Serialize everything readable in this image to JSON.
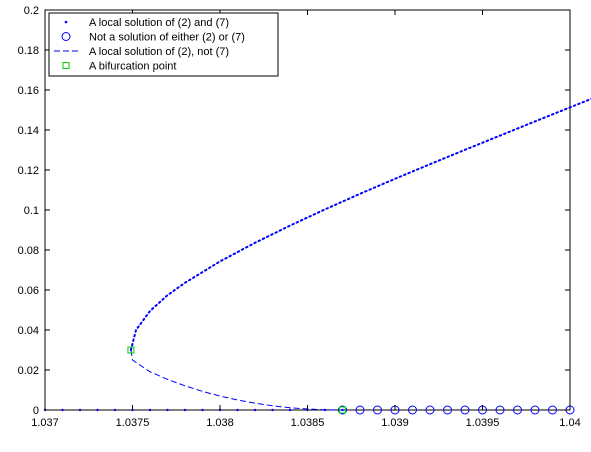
{
  "chart_data": {
    "type": "line",
    "title": "",
    "xlabel": "",
    "ylabel": "",
    "xlim": [
      1.037,
      1.04
    ],
    "ylim": [
      0,
      0.2
    ],
    "grid": false,
    "legend_position": "top-left",
    "x_ticks": [
      "1.037",
      "1.0375",
      "1.038",
      "1.0385",
      "1.039",
      "1.0395",
      "1.04"
    ],
    "y_ticks": [
      "0",
      "0.02",
      "0.04",
      "0.06",
      "0.08",
      "0.1",
      "0.12",
      "0.14",
      "0.16",
      "0.18",
      "0.2"
    ],
    "colors": {
      "series": "#0000ff",
      "bifurcation": "#00cc00",
      "axis": "#000000"
    },
    "series": [
      {
        "name": "A local solution of (2) and (7)",
        "style": "dotted",
        "segments": [
          {
            "description": "trivial branch y = 0 left of the turning point",
            "points": [
              [
                1.037,
                0
              ],
              [
                1.0371,
                0
              ],
              [
                1.0372,
                0
              ],
              [
                1.0373,
                0
              ],
              [
                1.0374,
                0
              ],
              [
                1.0375,
                0
              ],
              [
                1.0376,
                0
              ],
              [
                1.0377,
                0
              ],
              [
                1.0378,
                0
              ],
              [
                1.0379,
                0
              ],
              [
                1.038,
                0
              ],
              [
                1.0381,
                0
              ],
              [
                1.0382,
                0
              ],
              [
                1.0383,
                0
              ],
              [
                1.0384,
                0
              ],
              [
                1.0385,
                0
              ],
              [
                1.0386,
                0
              ],
              [
                1.0387,
                0
              ]
            ]
          },
          {
            "description": "upper branch from the bifurcation point",
            "points": [
              [
                1.037491,
                0.03
              ],
              [
                1.03752,
                0.04
              ],
              [
                1.0376,
                0.0495
              ],
              [
                1.0377,
                0.0574
              ],
              [
                1.0378,
                0.0636
              ],
              [
                1.038,
                0.0743
              ],
              [
                1.0382,
                0.0836
              ],
              [
                1.0384,
                0.0922
              ],
              [
                1.0386,
                0.1003
              ],
              [
                1.0388,
                0.1081
              ],
              [
                1.039,
                0.1156
              ],
              [
                1.0392,
                0.1229
              ],
              [
                1.0394,
                0.1301
              ],
              [
                1.0396,
                0.1372
              ],
              [
                1.0398,
                0.1443
              ],
              [
                1.04,
                0.1513
              ],
              [
                1.0402,
                0.1583
              ],
              [
                1.0404,
                0.1652
              ],
              [
                1.0406,
                0.172
              ],
              [
                1.0408,
                0.1788
              ],
              [
                1.04095,
                0.1838
              ]
            ]
          }
        ]
      },
      {
        "name": "Not a solution of either (2) or (7)",
        "style": "circle-markers",
        "points": [
          [
            1.0387,
            0
          ],
          [
            1.0388,
            0
          ],
          [
            1.0389,
            0
          ],
          [
            1.039,
            0
          ],
          [
            1.0391,
            0
          ],
          [
            1.0392,
            0
          ],
          [
            1.0393,
            0
          ],
          [
            1.0394,
            0
          ],
          [
            1.0395,
            0
          ],
          [
            1.0396,
            0
          ],
          [
            1.0397,
            0
          ],
          [
            1.0398,
            0
          ],
          [
            1.0399,
            0
          ],
          [
            1.04,
            0
          ]
        ]
      },
      {
        "name": "A local solution of (2), not (7)",
        "style": "dashed",
        "points": [
          [
            1.037491,
            0.03
          ],
          [
            1.0375,
            0.025
          ],
          [
            1.0376,
            0.0191
          ],
          [
            1.0377,
            0.0153
          ],
          [
            1.0378,
            0.0121
          ],
          [
            1.0379,
            0.0093
          ],
          [
            1.038,
            0.007
          ],
          [
            1.0381,
            0.005
          ],
          [
            1.0382,
            0.0034
          ],
          [
            1.0383,
            0.0021
          ],
          [
            1.0384,
            0.0011
          ],
          [
            1.0385,
            0.0005
          ],
          [
            1.0386,
            0.0001
          ],
          [
            1.0387,
            0
          ]
        ]
      },
      {
        "name": "A bifurcation point",
        "style": "square-markers",
        "points": [
          [
            1.037491,
            0.03
          ],
          [
            1.0387,
            0
          ]
        ]
      }
    ]
  }
}
